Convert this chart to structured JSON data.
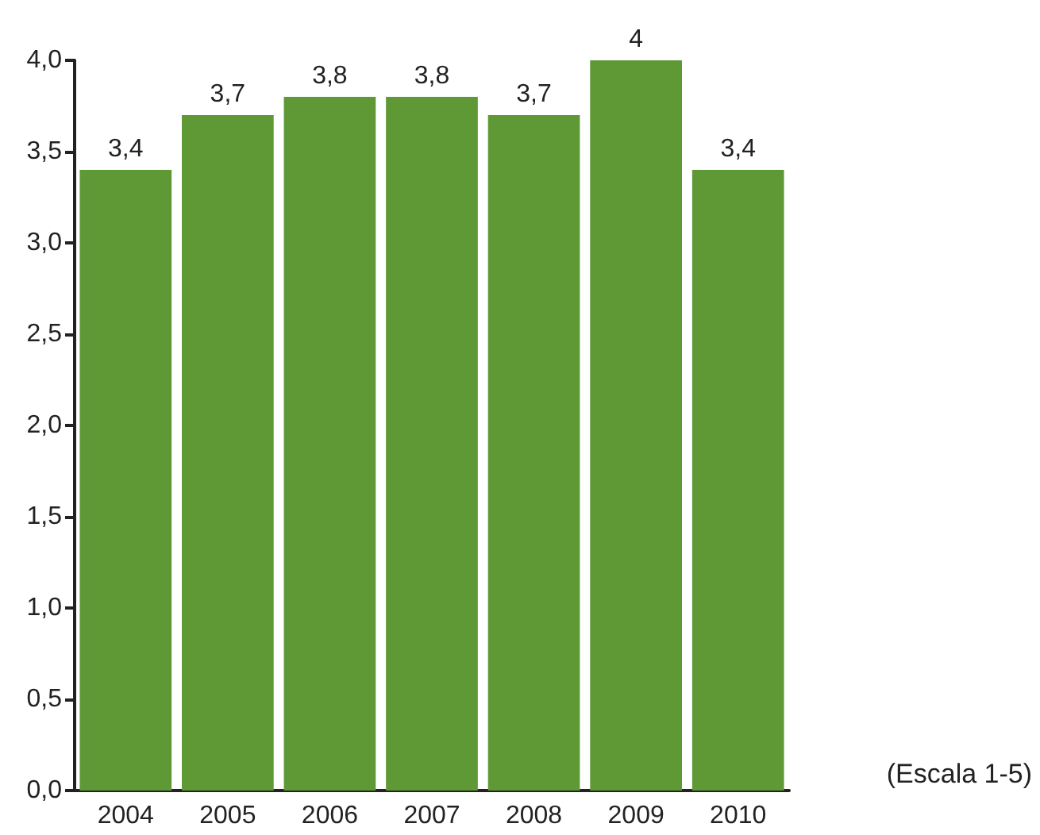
{
  "chart_data": {
    "type": "bar",
    "categories": [
      "2004",
      "2005",
      "2006",
      "2007",
      "2008",
      "2009",
      "2010"
    ],
    "values": [
      3.4,
      3.7,
      3.8,
      3.8,
      3.7,
      4,
      3.4
    ],
    "value_labels": [
      "3,4",
      "3,7",
      "3,8",
      "3,8",
      "3,7",
      "4",
      "3,4"
    ],
    "color": "#5f9935",
    "ylim": [
      0,
      4
    ],
    "yticks": [
      {
        "value": 0,
        "label": "0,0"
      },
      {
        "value": 0.5,
        "label": "0,5"
      },
      {
        "value": 1,
        "label": "1,0"
      },
      {
        "value": 1.5,
        "label": "1,5"
      },
      {
        "value": 2,
        "label": "2,0"
      },
      {
        "value": 2.5,
        "label": "2,5"
      },
      {
        "value": 3,
        "label": "3,0"
      },
      {
        "value": 3.5,
        "label": "3,5"
      },
      {
        "value": 4,
        "label": "4,0"
      }
    ],
    "annotations": [
      "(Escala 1-5)"
    ],
    "grid": false
  }
}
